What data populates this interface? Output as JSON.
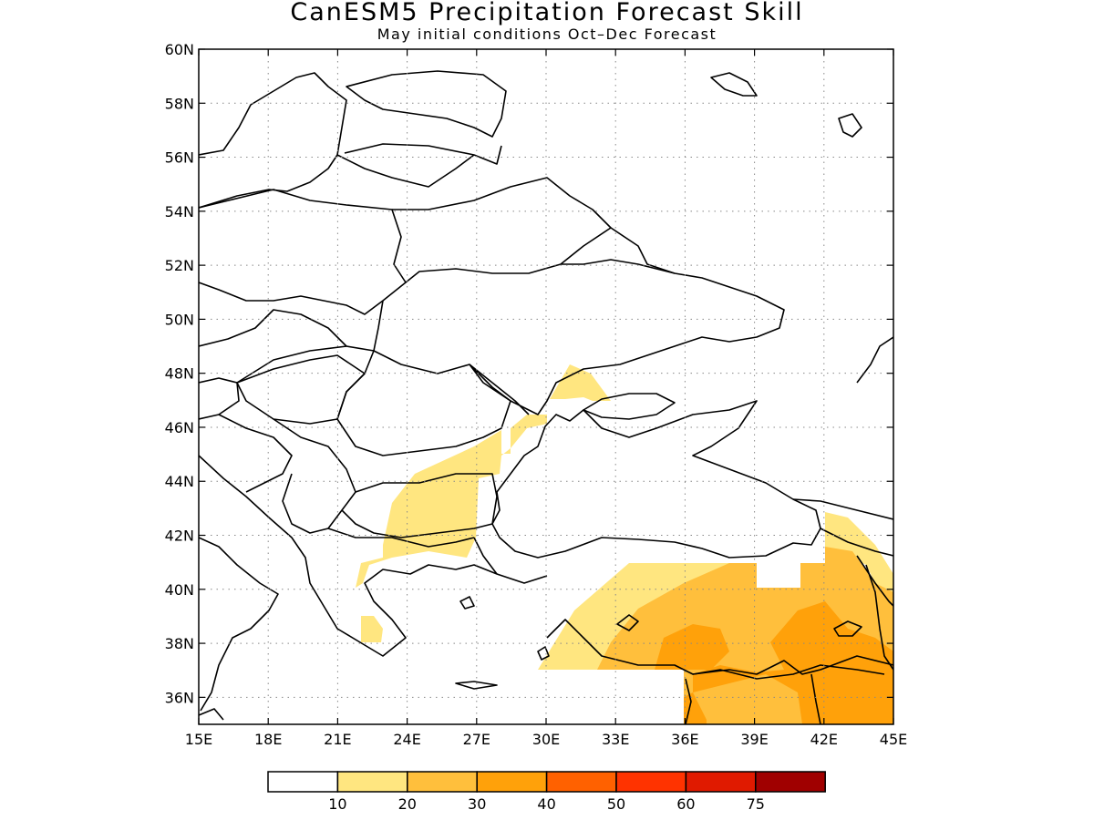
{
  "title": "CanESM5 Precipitation Forecast Skill",
  "subtitle": "May initial conditions  Oct–Dec Forecast",
  "chart_data": {
    "type": "heatmap",
    "lon_range": [
      15,
      45
    ],
    "lat_range": [
      35,
      60
    ],
    "x_ticks": [
      "15E",
      "18E",
      "21E",
      "24E",
      "27E",
      "30E",
      "33E",
      "36E",
      "39E",
      "42E",
      "45E"
    ],
    "y_ticks": [
      "36N",
      "38N",
      "40N",
      "42N",
      "44N",
      "46N",
      "48N",
      "50N",
      "52N",
      "54N",
      "56N",
      "58N",
      "60N"
    ],
    "grid": "dotted",
    "colorbar": {
      "colors": [
        "#ffffff",
        "#ffe680",
        "#ffbf3c",
        "#ffa10a",
        "#ff6100",
        "#ff3300",
        "#e01a00",
        "#a00000"
      ],
      "labels": [
        "10",
        "20",
        "30",
        "40",
        "50",
        "60",
        "75"
      ]
    }
  }
}
